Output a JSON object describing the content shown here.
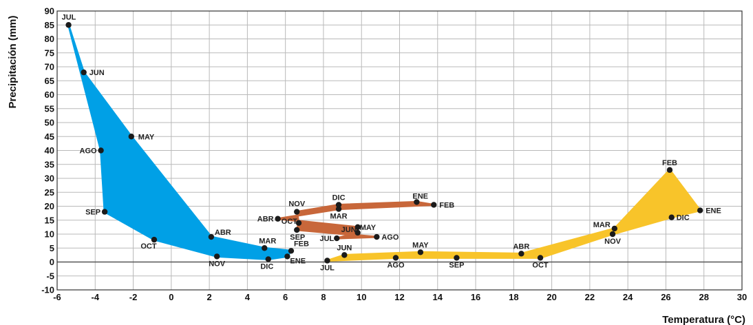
{
  "chart_data": {
    "type": "scatter",
    "title": "",
    "xlabel": "Temperatura (°C)",
    "ylabel": "Precipitación (mm)",
    "xlim": [
      -6,
      30
    ],
    "ylim": [
      -10,
      90
    ],
    "x_ticks": [
      -6,
      -4,
      -2,
      0,
      2,
      4,
      6,
      8,
      10,
      12,
      14,
      16,
      18,
      20,
      22,
      24,
      26,
      28,
      30
    ],
    "y_ticks": [
      -10,
      -5,
      0,
      5,
      10,
      15,
      20,
      25,
      30,
      35,
      40,
      45,
      50,
      55,
      60,
      65,
      70,
      75,
      80,
      85,
      90
    ],
    "grid": true,
    "legend": "none",
    "series": [
      {
        "color": "#00a0e6",
        "points": [
          {
            "label": "ENE",
            "x": 6.1,
            "y": 2
          },
          {
            "label": "FEB",
            "x": 6.3,
            "y": 4
          },
          {
            "label": "MAR",
            "x": 4.9,
            "y": 5
          },
          {
            "label": "ABR",
            "x": 2.1,
            "y": 9
          },
          {
            "label": "MAY",
            "x": -2.1,
            "y": 45
          },
          {
            "label": "JUN",
            "x": -4.6,
            "y": 68
          },
          {
            "label": "JUL",
            "x": -5.4,
            "y": 85
          },
          {
            "label": "AGO",
            "x": -3.7,
            "y": 40
          },
          {
            "label": "SEP",
            "x": -3.5,
            "y": 18
          },
          {
            "label": "OCT",
            "x": -0.9,
            "y": 8
          },
          {
            "label": "NOV",
            "x": 2.4,
            "y": 2
          },
          {
            "label": "DIC",
            "x": 5.1,
            "y": 1
          }
        ]
      },
      {
        "color": "#c8673a",
        "points": [
          {
            "label": "ENE",
            "x": 12.9,
            "y": 21.5
          },
          {
            "label": "FEB",
            "x": 13.8,
            "y": 20.5
          },
          {
            "label": "MAR",
            "x": 8.8,
            "y": 19
          },
          {
            "label": "ABR",
            "x": 5.6,
            "y": 15.5
          },
          {
            "label": "MAY",
            "x": 9.8,
            "y": 12.5
          },
          {
            "label": "JUN",
            "x": 9.8,
            "y": 10.5
          },
          {
            "label": "JUL",
            "x": 8.7,
            "y": 8.5
          },
          {
            "label": "AGO",
            "x": 10.8,
            "y": 9
          },
          {
            "label": "SEP",
            "x": 6.6,
            "y": 11.5
          },
          {
            "label": "OCT",
            "x": 6.7,
            "y": 14
          },
          {
            "label": "NOV",
            "x": 6.6,
            "y": 18
          },
          {
            "label": "DIC",
            "x": 8.8,
            "y": 20.5
          }
        ]
      },
      {
        "color": "#f8c42a",
        "points": [
          {
            "label": "ENE",
            "x": 27.8,
            "y": 18.5
          },
          {
            "label": "FEB",
            "x": 26.2,
            "y": 33
          },
          {
            "label": "MAR",
            "x": 23.3,
            "y": 12
          },
          {
            "label": "ABR",
            "x": 18.4,
            "y": 3
          },
          {
            "label": "MAY",
            "x": 13.1,
            "y": 3.5
          },
          {
            "label": "JUN",
            "x": 9.1,
            "y": 2.5
          },
          {
            "label": "JUL",
            "x": 8.2,
            "y": 0.5
          },
          {
            "label": "AGO",
            "x": 11.8,
            "y": 1.5
          },
          {
            "label": "SEP",
            "x": 15.0,
            "y": 1.5
          },
          {
            "label": "OCT",
            "x": 19.4,
            "y": 1.5
          },
          {
            "label": "NOV",
            "x": 23.2,
            "y": 10
          },
          {
            "label": "DIC",
            "x": 26.3,
            "y": 16
          }
        ]
      }
    ]
  }
}
